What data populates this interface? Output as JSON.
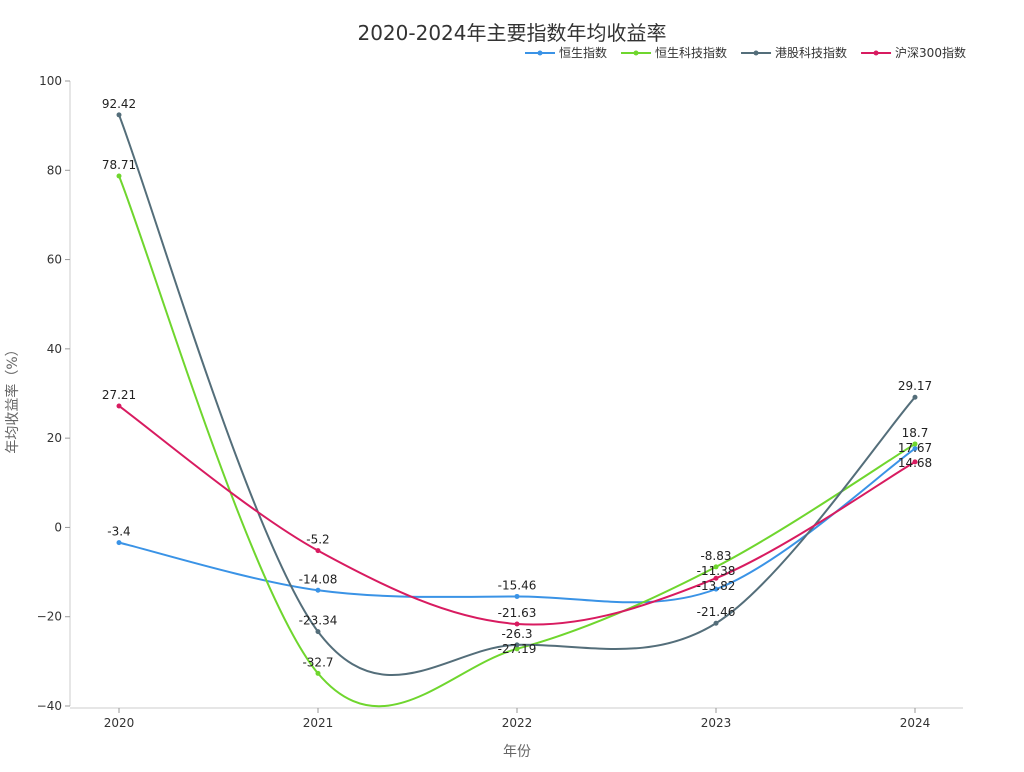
{
  "chart_data": {
    "type": "line",
    "smooth": true,
    "title": "2020-2024年主要指数年均收益率",
    "xlabel": "年份",
    "ylabel": "年均收益率（%）",
    "categories": [
      "2020",
      "2021",
      "2022",
      "2023",
      "2024"
    ],
    "ylim": [
      -40,
      100
    ],
    "yticks": [
      -40,
      -20,
      0,
      20,
      40,
      60,
      80,
      100
    ],
    "ytick_labels": [
      "−40",
      "−20",
      "0",
      "20",
      "40",
      "60",
      "80",
      "100"
    ],
    "grid": false,
    "legend": "top-right",
    "data_labels": true,
    "series": [
      {
        "name": "恒生指数",
        "color": "#3a93e6",
        "values": [
          -3.4,
          -14.08,
          -15.46,
          -13.82,
          17.67
        ]
      },
      {
        "name": "恒生科技指数",
        "color": "#6fd62e",
        "values": [
          78.71,
          -32.7,
          -27.19,
          -8.83,
          18.7
        ]
      },
      {
        "name": "港股科技指数",
        "color": "#546e7a",
        "values": [
          92.42,
          -23.34,
          -26.3,
          -21.46,
          29.17
        ]
      },
      {
        "name": "沪深300指数",
        "color": "#d81b60",
        "values": [
          27.21,
          -5.2,
          -21.63,
          -11.38,
          14.68
        ]
      }
    ]
  }
}
